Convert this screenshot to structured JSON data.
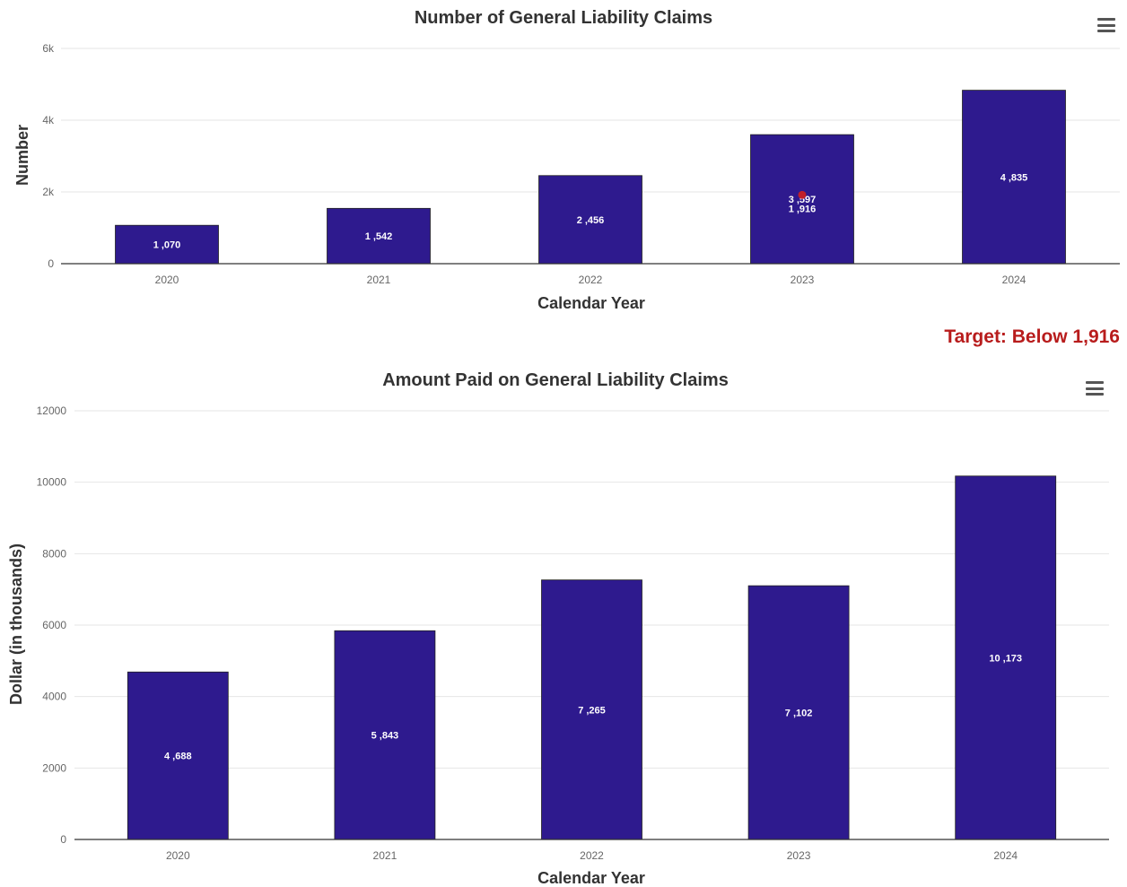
{
  "chart_data": [
    {
      "type": "bar",
      "title": "Number of General Liability Claims",
      "xlabel": "Calendar Year",
      "ylabel": "Number",
      "categories": [
        "2020",
        "2021",
        "2022",
        "2023",
        "2024"
      ],
      "values": [
        1070,
        1542,
        2456,
        3597,
        4835
      ],
      "data_labels": [
        "1 ,070",
        "1 ,542",
        "2 ,456",
        "3 ,597",
        "4 ,835"
      ],
      "ylim": [
        0,
        6000
      ],
      "yticks": [
        0,
        2000,
        4000,
        6000
      ],
      "ytick_labels": [
        "0",
        "2k",
        "4k",
        "6k"
      ],
      "grid": true,
      "bar_color": "#2e1a8e",
      "target_marker": {
        "category": "2023",
        "value": 1916,
        "label": "1 ,916",
        "color": "#c0202a"
      }
    },
    {
      "type": "bar",
      "title": "Amount Paid on General Liability Claims",
      "xlabel": "Calendar Year",
      "ylabel": "Dollar (in thousands)",
      "categories": [
        "2020",
        "2021",
        "2022",
        "2023",
        "2024"
      ],
      "values": [
        4688,
        5843,
        7265,
        7102,
        10173
      ],
      "data_labels": [
        "4 ,688",
        "5 ,843",
        "7 ,265",
        "7 ,102",
        "10 ,173"
      ],
      "ylim": [
        0,
        12000
      ],
      "yticks": [
        0,
        2000,
        4000,
        6000,
        8000,
        10000,
        12000
      ],
      "ytick_labels": [
        "0",
        "2000",
        "4000",
        "6000",
        "8000",
        "10000",
        "12000"
      ],
      "grid": true,
      "bar_color": "#2e1a8e"
    }
  ],
  "target_note": "Target: Below 1,916",
  "menu_icon": "hamburger-menu-icon"
}
